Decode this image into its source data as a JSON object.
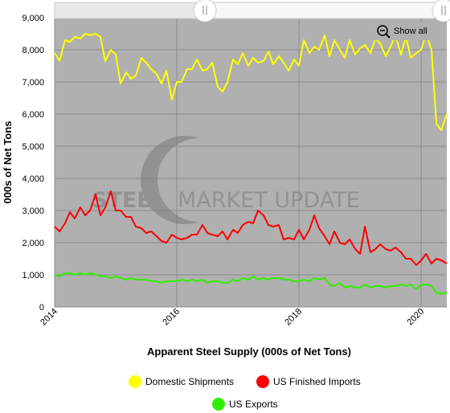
{
  "chart_data": {
    "type": "line",
    "title": "",
    "xlabel": "Apparent Steel Supply (000s of Net Tons)",
    "ylabel": "000s of Net Tons",
    "xlim": [
      2014.0,
      2020.42
    ],
    "ylim": [
      0,
      9000
    ],
    "yticks": [
      "0",
      "1,000",
      "2,000",
      "3,000",
      "4,000",
      "5,000",
      "6,000",
      "7,000",
      "8,000",
      "9,000"
    ],
    "xticks": [
      "2014",
      "2016",
      "2018",
      "2020"
    ],
    "grid": true,
    "legend_position": "bottom",
    "watermark": {
      "bold": "STEEL",
      "rest": "MARKET UPDATE"
    },
    "show_all_label": "Show all",
    "series": [
      {
        "name": "Domestic Shipments",
        "color": "#ffff00",
        "x": [
          2014.0,
          2014.08,
          2014.17,
          2014.25,
          2014.33,
          2014.42,
          2014.5,
          2014.58,
          2014.67,
          2014.75,
          2014.83,
          2014.92,
          2015.0,
          2015.08,
          2015.17,
          2015.25,
          2015.33,
          2015.42,
          2015.5,
          2015.58,
          2015.67,
          2015.75,
          2015.83,
          2015.92,
          2016.0,
          2016.08,
          2016.17,
          2016.25,
          2016.33,
          2016.42,
          2016.5,
          2016.58,
          2016.67,
          2016.75,
          2016.83,
          2016.92,
          2017.0,
          2017.08,
          2017.17,
          2017.25,
          2017.33,
          2017.42,
          2017.5,
          2017.58,
          2017.67,
          2017.75,
          2017.83,
          2017.92,
          2018.0,
          2018.08,
          2018.17,
          2018.25,
          2018.33,
          2018.42,
          2018.5,
          2018.58,
          2018.67,
          2018.75,
          2018.83,
          2018.92,
          2019.0,
          2019.08,
          2019.17,
          2019.25,
          2019.33,
          2019.42,
          2019.5,
          2019.58,
          2019.67,
          2019.75,
          2019.83,
          2019.92,
          2020.0,
          2020.08,
          2020.17,
          2020.25,
          2020.33,
          2020.42
        ],
        "values": [
          7900,
          7650,
          8300,
          8250,
          8400,
          8350,
          8500,
          8450,
          8500,
          8400,
          7650,
          8000,
          7850,
          6950,
          7300,
          7100,
          7200,
          7750,
          7600,
          7400,
          7250,
          6950,
          7350,
          6450,
          7000,
          7000,
          7400,
          7400,
          7700,
          7350,
          7400,
          7600,
          6850,
          6700,
          7000,
          7700,
          7550,
          7900,
          7500,
          7750,
          7600,
          7650,
          7950,
          7550,
          7800,
          7600,
          7350,
          7700,
          7500,
          8300,
          7900,
          8100,
          8000,
          8450,
          7800,
          8300,
          8000,
          7750,
          8300,
          7850,
          8050,
          8150,
          7900,
          8350,
          8200,
          7800,
          8100,
          8450,
          7850,
          8400,
          7750,
          7900,
          8000,
          8500,
          8000,
          5700,
          5500,
          6000
        ]
      },
      {
        "name": "US Finished Imports",
        "color": "#ff0000",
        "x": [
          2014.0,
          2014.08,
          2014.17,
          2014.25,
          2014.33,
          2014.42,
          2014.5,
          2014.58,
          2014.67,
          2014.75,
          2014.83,
          2014.92,
          2015.0,
          2015.08,
          2015.17,
          2015.25,
          2015.33,
          2015.42,
          2015.5,
          2015.58,
          2015.67,
          2015.75,
          2015.83,
          2015.92,
          2016.0,
          2016.08,
          2016.17,
          2016.25,
          2016.33,
          2016.42,
          2016.5,
          2016.58,
          2016.67,
          2016.75,
          2016.83,
          2016.92,
          2017.0,
          2017.08,
          2017.17,
          2017.25,
          2017.33,
          2017.42,
          2017.5,
          2017.58,
          2017.67,
          2017.75,
          2017.83,
          2017.92,
          2018.0,
          2018.08,
          2018.17,
          2018.25,
          2018.33,
          2018.42,
          2018.5,
          2018.58,
          2018.67,
          2018.75,
          2018.83,
          2018.92,
          2019.0,
          2019.08,
          2019.17,
          2019.25,
          2019.33,
          2019.42,
          2019.5,
          2019.58,
          2019.67,
          2019.75,
          2019.83,
          2019.92,
          2020.0,
          2020.08,
          2020.17,
          2020.25,
          2020.33,
          2020.42
        ],
        "values": [
          2500,
          2350,
          2600,
          2950,
          2750,
          3100,
          2850,
          3000,
          3500,
          2850,
          3100,
          3600,
          3000,
          3000,
          2800,
          2800,
          2500,
          2450,
          2300,
          2350,
          2200,
          2050,
          2000,
          2250,
          2150,
          2100,
          2150,
          2250,
          2250,
          2550,
          2300,
          2250,
          2200,
          2350,
          2100,
          2400,
          2300,
          2550,
          2650,
          2600,
          3000,
          2850,
          2550,
          2500,
          2550,
          2100,
          2150,
          2100,
          2400,
          2100,
          2400,
          2850,
          2450,
          2200,
          1950,
          2350,
          2000,
          1950,
          2100,
          1800,
          1650,
          2500,
          1700,
          1800,
          1950,
          1800,
          1750,
          1850,
          1700,
          1500,
          1500,
          1300,
          1450,
          1650,
          1350,
          1500,
          1450,
          1350
        ]
      },
      {
        "name": "US Exports",
        "color": "#33ee00",
        "x": [
          2014.0,
          2014.08,
          2014.17,
          2014.25,
          2014.33,
          2014.42,
          2014.5,
          2014.58,
          2014.67,
          2014.75,
          2014.83,
          2014.92,
          2015.0,
          2015.08,
          2015.17,
          2015.25,
          2015.33,
          2015.42,
          2015.5,
          2015.58,
          2015.67,
          2015.75,
          2015.83,
          2015.92,
          2016.0,
          2016.08,
          2016.17,
          2016.25,
          2016.33,
          2016.42,
          2016.5,
          2016.58,
          2016.67,
          2016.75,
          2016.83,
          2016.92,
          2017.0,
          2017.08,
          2017.17,
          2017.25,
          2017.33,
          2017.42,
          2017.5,
          2017.58,
          2017.67,
          2017.75,
          2017.83,
          2017.92,
          2018.0,
          2018.08,
          2018.17,
          2018.25,
          2018.33,
          2018.42,
          2018.5,
          2018.58,
          2018.67,
          2018.75,
          2018.83,
          2018.92,
          2019.0,
          2019.08,
          2019.17,
          2019.25,
          2019.33,
          2019.42,
          2019.5,
          2019.58,
          2019.67,
          2019.75,
          2019.83,
          2019.92,
          2020.0,
          2020.08,
          2020.17,
          2020.25,
          2020.33,
          2020.42
        ],
        "values": [
          1000,
          950,
          1050,
          1050,
          1000,
          1050,
          1000,
          1050,
          1000,
          950,
          950,
          900,
          950,
          900,
          850,
          900,
          850,
          850,
          850,
          800,
          800,
          750,
          800,
          800,
          800,
          850,
          800,
          850,
          800,
          850,
          750,
          800,
          800,
          750,
          750,
          850,
          800,
          900,
          850,
          950,
          850,
          900,
          850,
          900,
          900,
          850,
          850,
          800,
          800,
          850,
          800,
          900,
          850,
          900,
          700,
          650,
          750,
          600,
          650,
          600,
          600,
          700,
          600,
          650,
          650,
          600,
          650,
          650,
          700,
          650,
          700,
          550,
          700,
          700,
          650,
          450,
          400,
          450
        ]
      }
    ]
  }
}
